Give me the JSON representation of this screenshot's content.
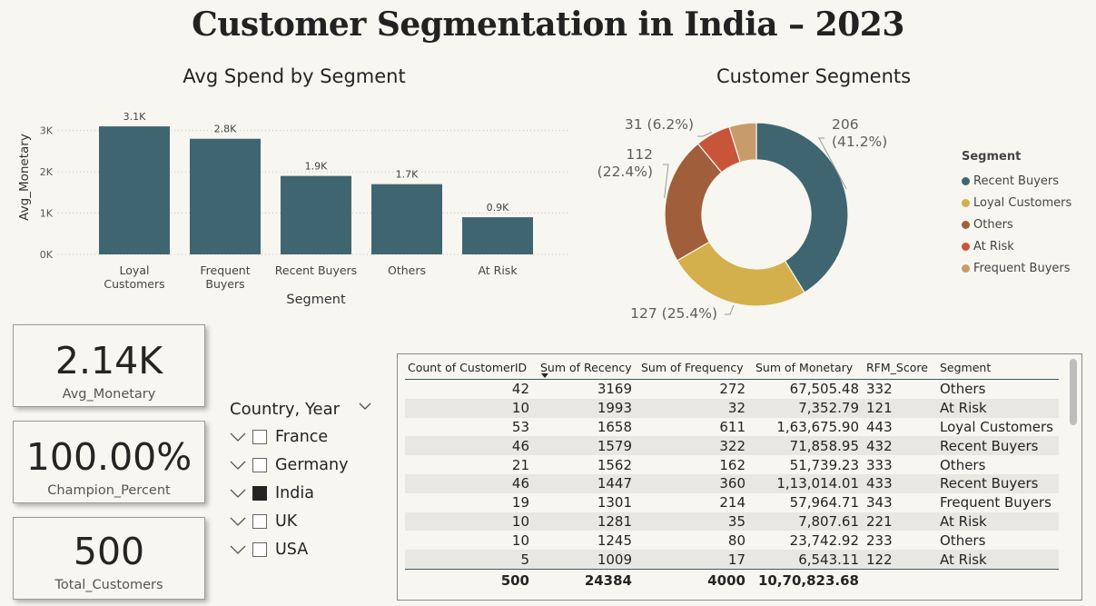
{
  "title": "Customer Segmentation in India – 2023",
  "colors": {
    "teal": "#3f6670",
    "gold": "#d4b04c",
    "brown": "#a05f3a",
    "red": "#c8553a",
    "tan": "#c89b6a"
  },
  "bar_chart": {
    "title": "Avg Spend by Segment",
    "xlabel": "Segment",
    "ylabel": "Avg_Monetary",
    "y_ticks": [
      "0K",
      "1K",
      "2K",
      "3K"
    ]
  },
  "donut_chart": {
    "title": "Customer Segments",
    "legend_title": "Segment",
    "legend": [
      "Recent Buyers",
      "Loyal Customers",
      "Others",
      "At Risk",
      "Frequent Buyers"
    ]
  },
  "chart_data": [
    {
      "type": "bar",
      "title": "Avg Spend by Segment",
      "xlabel": "Segment",
      "ylabel": "Avg_Monetary",
      "categories": [
        "Loyal Customers",
        "Frequent Buyers",
        "Recent Buyers",
        "Others",
        "At Risk"
      ],
      "values": [
        3100,
        2800,
        1900,
        1700,
        900
      ],
      "data_labels": [
        "3.1K",
        "2.8K",
        "1.9K",
        "1.7K",
        "0.9K"
      ],
      "ylim": [
        0,
        3300
      ],
      "y_ticks": [
        0,
        1000,
        2000,
        3000
      ],
      "grid": true
    },
    {
      "type": "pie",
      "title": "Customer Segments",
      "categories": [
        "Recent Buyers",
        "Loyal Customers",
        "Others",
        "At Risk",
        "Frequent Buyers"
      ],
      "values": [
        206,
        127,
        112,
        31,
        24
      ],
      "percent": [
        41.2,
        25.4,
        22.4,
        6.2,
        4.8
      ],
      "data_labels": [
        [
          "206",
          "(41.2%)"
        ],
        [
          "127 (25.4%)"
        ],
        [
          "112",
          "(22.4%)"
        ],
        [
          "31 (6.2%)"
        ],
        []
      ],
      "legend": "right"
    }
  ],
  "cards": [
    {
      "value": "2.14K",
      "label": "Avg_Monetary"
    },
    {
      "value": "100.00%",
      "label": "Champion_Percent"
    },
    {
      "value": "500",
      "label": "Total_Customers"
    }
  ],
  "slicer": {
    "header": "Country, Year",
    "items": [
      {
        "label": "France",
        "checked": false
      },
      {
        "label": "Germany",
        "checked": false
      },
      {
        "label": "India",
        "checked": true
      },
      {
        "label": "UK",
        "checked": false
      },
      {
        "label": "USA",
        "checked": false
      }
    ]
  },
  "table": {
    "columns": [
      "Count of CustomerID",
      "Sum of Recency",
      "Sum of Frequency",
      "Sum of Monetary",
      "RFM_Score",
      "Segment"
    ],
    "rows": [
      [
        "42",
        "3169",
        "272",
        "67,505.48",
        "332",
        "Others"
      ],
      [
        "10",
        "1993",
        "32",
        "7,352.79",
        "121",
        "At Risk"
      ],
      [
        "53",
        "1658",
        "611",
        "1,63,675.90",
        "443",
        "Loyal Customers"
      ],
      [
        "46",
        "1579",
        "322",
        "71,858.95",
        "432",
        "Recent Buyers"
      ],
      [
        "21",
        "1562",
        "162",
        "51,739.23",
        "333",
        "Others"
      ],
      [
        "46",
        "1447",
        "360",
        "1,13,014.01",
        "433",
        "Recent Buyers"
      ],
      [
        "19",
        "1301",
        "214",
        "57,964.71",
        "343",
        "Frequent Buyers"
      ],
      [
        "10",
        "1281",
        "35",
        "7,807.61",
        "221",
        "At Risk"
      ],
      [
        "10",
        "1245",
        "80",
        "23,742.92",
        "233",
        "Others"
      ],
      [
        "5",
        "1009",
        "17",
        "6,543.11",
        "122",
        "At Risk"
      ]
    ],
    "totals": [
      "500",
      "24384",
      "4000",
      "10,70,823.68",
      "",
      ""
    ]
  }
}
